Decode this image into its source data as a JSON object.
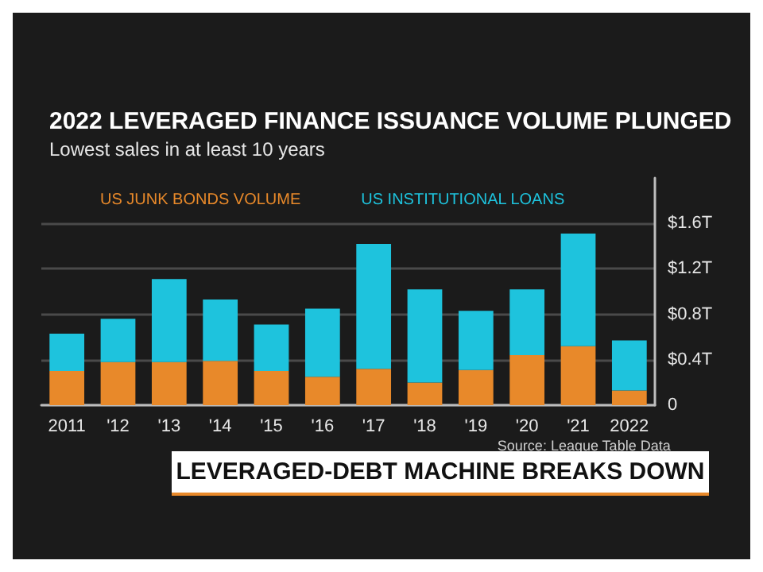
{
  "chart_data": {
    "type": "bar",
    "title": "2022 LEVERAGED FINANCE ISSUANCE VOLUME PLUNGED",
    "subtitle": "Lowest sales in at least 10 years",
    "categories": [
      "2011",
      "'12",
      "'13",
      "'14",
      "'15",
      "'16",
      "'17",
      "'18",
      "'19",
      "'20",
      "'21",
      "2022"
    ],
    "stacked": true,
    "series": [
      {
        "name": "US JUNK BONDS VOLUME",
        "color": "#e8892a",
        "values": [
          0.3,
          0.38,
          0.38,
          0.39,
          0.3,
          0.25,
          0.32,
          0.2,
          0.31,
          0.44,
          0.52,
          0.13
        ]
      },
      {
        "name": "US INSTITUTIONAL LOANS",
        "color": "#1ec3dd",
        "values": [
          0.33,
          0.38,
          0.73,
          0.54,
          0.41,
          0.6,
          1.1,
          0.82,
          0.52,
          0.58,
          0.99,
          0.44
        ]
      }
    ],
    "ylim": [
      0,
      2.0
    ],
    "yticks": [
      {
        "value": 0,
        "label": "0"
      },
      {
        "value": 0.4,
        "label": "$0.4T"
      },
      {
        "value": 0.8,
        "label": "$0.8T"
      },
      {
        "value": 1.2,
        "label": "$1.2T"
      },
      {
        "value": 1.6,
        "label": "$1.6T"
      }
    ],
    "grid": "y",
    "legend": "top left",
    "annotations": [
      "Source: League Table Data",
      "LEVERAGED-DEBT MACHINE BREAKS DOWN"
    ]
  }
}
